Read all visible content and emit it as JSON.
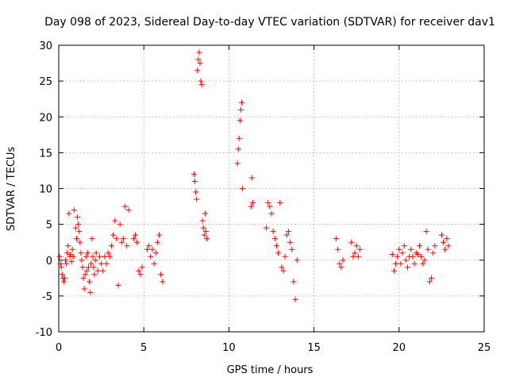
{
  "chart_data": {
    "type": "scatter",
    "title": "Day 098 of 2023, Sidereal Day-to-day VTEC variation (SDTVAR) for receiver dav1",
    "xlabel": "GPS time / hours",
    "ylabel": "SDTVAR / TECUs",
    "xlim": [
      0,
      25
    ],
    "ylim": [
      -10,
      30
    ],
    "xticks": [
      "0",
      "5",
      "10",
      "15",
      "20",
      "25"
    ],
    "yticks": [
      "-10",
      "-5",
      "0",
      "5",
      "10",
      "15",
      "20",
      "25",
      "30"
    ],
    "grid": true,
    "marker": "+",
    "color": "#ff0000",
    "series": [
      {
        "name": "SDTVAR",
        "x": [
          0.05,
          0.1,
          0.15,
          0.2,
          0.25,
          0.3,
          0.35,
          0.4,
          0.45,
          0.5,
          0.55,
          0.6,
          0.65,
          0.7,
          0.75,
          0.8,
          0.85,
          0.9,
          1.0,
          1.05,
          1.1,
          1.15,
          1.2,
          1.25,
          1.3,
          1.35,
          1.4,
          1.45,
          1.5,
          1.55,
          1.6,
          1.65,
          1.7,
          1.75,
          1.8,
          1.85,
          1.9,
          1.95,
          2.0,
          2.05,
          2.1,
          2.15,
          2.2,
          2.3,
          2.4,
          2.5,
          2.6,
          2.7,
          2.8,
          2.9,
          3.0,
          3.1,
          3.2,
          3.3,
          3.4,
          3.5,
          3.6,
          3.7,
          3.8,
          3.9,
          4.0,
          4.1,
          4.4,
          4.5,
          4.6,
          4.7,
          4.8,
          4.9,
          5.2,
          5.3,
          5.4,
          5.5,
          5.6,
          5.7,
          5.8,
          5.9,
          6.0,
          6.1,
          7.95,
          8.0,
          8.05,
          8.1,
          8.15,
          8.2,
          8.25,
          8.3,
          8.35,
          8.4,
          8.45,
          8.5,
          8.55,
          8.6,
          8.65,
          8.7,
          10.5,
          10.55,
          10.6,
          10.65,
          10.7,
          10.75,
          10.8,
          11.3,
          11.35,
          11.4,
          12.2,
          12.3,
          12.4,
          12.5,
          12.6,
          12.7,
          12.8,
          12.9,
          13.0,
          13.1,
          13.2,
          13.3,
          13.4,
          13.5,
          13.6,
          13.7,
          13.8,
          13.9,
          14.0,
          16.3,
          16.4,
          16.5,
          16.6,
          16.7,
          17.2,
          17.3,
          17.4,
          17.5,
          17.6,
          17.7,
          19.6,
          19.7,
          19.8,
          19.9,
          20.0,
          20.1,
          20.2,
          20.3,
          20.4,
          20.5,
          20.6,
          20.7,
          20.8,
          20.9,
          21.0,
          21.1,
          21.2,
          21.3,
          21.4,
          21.5,
          21.6,
          21.7,
          21.8,
          21.9,
          22.0,
          22.1,
          22.5,
          22.6,
          22.7,
          22.8,
          22.9
        ],
        "y": [
          0.5,
          -0.5,
          -1.0,
          -2.0,
          -2.5,
          -3.0,
          -2.5,
          0.0,
          -0.5,
          1.0,
          2.0,
          6.5,
          0.5,
          0.8,
          -0.2,
          1.5,
          0.5,
          7.0,
          4.5,
          3.0,
          6.0,
          5.0,
          4.0,
          2.5,
          1.0,
          0.0,
          -1.0,
          -2.5,
          -4.0,
          -2.0,
          0.5,
          -1.5,
          1.0,
          -1.0,
          -3.0,
          -4.5,
          -0.5,
          3.0,
          0.5,
          -1.0,
          -2.0,
          0.0,
          1.0,
          -1.5,
          0.5,
          -0.5,
          -1.5,
          0.5,
          -0.5,
          1.0,
          0.5,
          2.0,
          3.5,
          5.5,
          3.0,
          -3.5,
          5.0,
          2.5,
          3.0,
          7.5,
          2.0,
          7.0,
          3.0,
          3.5,
          2.5,
          -1.5,
          -2.0,
          -1.0,
          1.5,
          2.0,
          0.5,
          1.5,
          -0.5,
          1.0,
          2.5,
          3.5,
          -2.0,
          -3.0,
          12.0,
          11.0,
          9.5,
          8.5,
          26.5,
          28.0,
          29.0,
          27.5,
          25.0,
          24.5,
          5.5,
          4.5,
          3.5,
          6.5,
          4.0,
          3.0,
          13.5,
          15.5,
          17.0,
          19.5,
          21.0,
          22.0,
          10.0,
          7.5,
          11.5,
          8.0,
          4.5,
          8.0,
          7.5,
          6.5,
          4.0,
          3.0,
          2.0,
          1.0,
          8.0,
          -1.0,
          -1.5,
          0.5,
          3.5,
          4.0,
          2.5,
          1.5,
          -3.0,
          -5.5,
          0.0,
          3.0,
          1.5,
          -0.5,
          -1.0,
          0.0,
          2.5,
          0.5,
          1.0,
          2.0,
          0.5,
          1.5,
          0.8,
          -1.5,
          -0.5,
          0.5,
          1.5,
          -0.5,
          1.0,
          2.0,
          0.0,
          -1.0,
          0.5,
          1.5,
          0.5,
          -0.5,
          1.0,
          0.8,
          2.0,
          0.5,
          -0.5,
          0.0,
          4.0,
          1.5,
          -3.0,
          -2.5,
          1.0,
          2.0,
          3.5,
          2.5,
          1.5,
          3.0,
          2.0
        ]
      }
    ]
  }
}
